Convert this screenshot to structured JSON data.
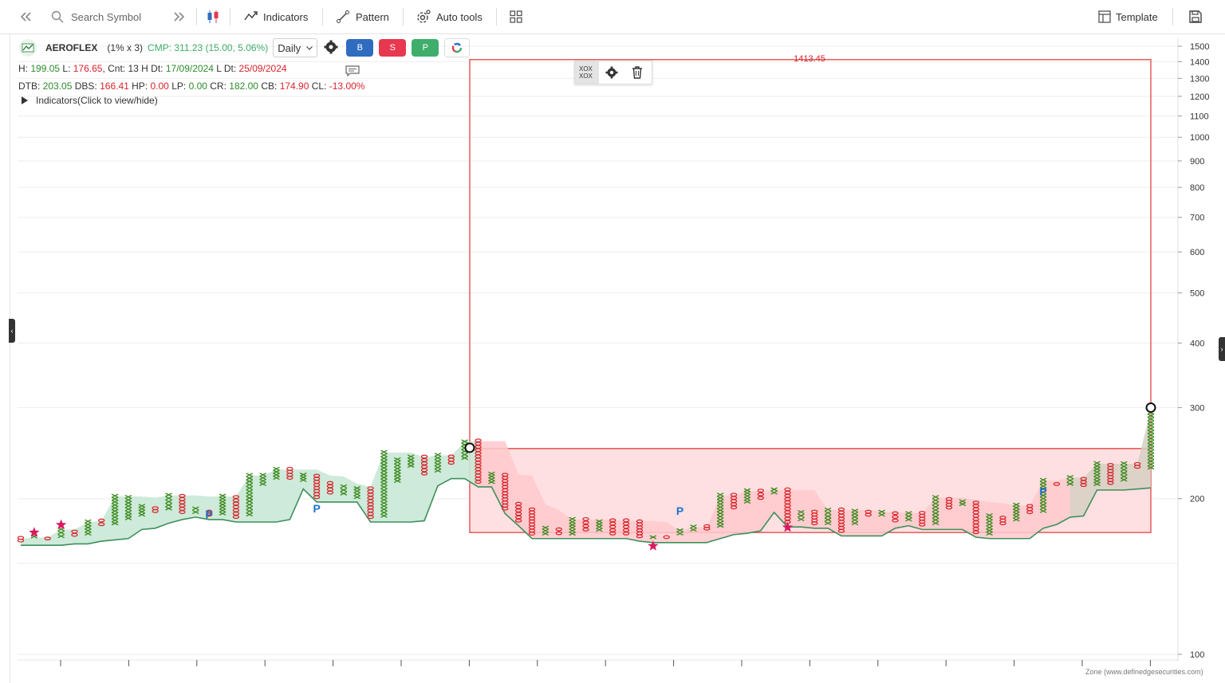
{
  "toolbar": {
    "search_placeholder": "Search Symbol",
    "indicators_label": "Indicators",
    "pattern_label": "Pattern",
    "auto_tools_label": "Auto tools",
    "template_label": "Template"
  },
  "symbol": {
    "name": "AEROFLEX",
    "box_setting": "(1% x 3)",
    "cmp": "CMP: 311.23 (15.00, 5.06%)",
    "timeframe": "Daily",
    "buy_label": "B",
    "sell_label": "S",
    "p_label": "P"
  },
  "stats1": {
    "h_key": "H:",
    "h_val": "199.05",
    "l_key": "L:",
    "l_val": "176.65",
    "cnt": "Cnt: 13",
    "h_dt_key": "H Dt:",
    "h_dt_val": "17/09/2024",
    "l_dt_key": "L Dt:",
    "l_dt_val": "25/09/2024"
  },
  "stats2": {
    "dtb_key": "DTB:",
    "dtb_val": "203.05",
    "dbs_key": "DBS:",
    "dbs_val": "166.41",
    "hp_key": "HP:",
    "hp_val": "0.00",
    "lp_key": "LP:",
    "lp_val": "0.00",
    "cr_key": "CR:",
    "cr_val": "182.00",
    "cb_key": "CB:",
    "cb_val": "174.90",
    "cl_key": "CL:",
    "cl_val": "-13.00%"
  },
  "indicators_toggle": "Indicators(Click to view/hide)",
  "zone_label": "Zone (www.definedgesecurities.com)",
  "colors": {
    "x_col": "#3d8a1f",
    "o_col": "#d8232a",
    "cloud_green": "#c9e8d6",
    "cloud_red": "#ffc9cc",
    "line": "#3f8f5b",
    "rect_stroke": "#e85c5c",
    "rect_fill": "#ffe0e2",
    "star": "#d81b60",
    "p_label": "#1e73c8",
    "buy": "#2f6cc0",
    "sell": "#e8384f",
    "p_btn": "#3fae6a"
  },
  "chart_data": {
    "type": "point-and-figure",
    "scale": "log",
    "y_ticks": [
      1500,
      1400,
      1300,
      1200,
      1100,
      1000,
      900,
      800,
      700,
      600,
      500,
      400,
      300,
      200,
      100
    ],
    "ylim": [
      100,
      1500
    ],
    "rectangle_label": "1413.45",
    "rectangle": {
      "upper": 1413.45,
      "lower": 250,
      "floor": 172
    },
    "columns": [
      {
        "type": "O",
        "high": 169,
        "low": 165
      },
      {
        "type": "X",
        "high": 170,
        "low": 168
      },
      {
        "type": "O",
        "high": 169,
        "low": 166
      },
      {
        "type": "X",
        "high": 176,
        "low": 168
      },
      {
        "type": "O",
        "high": 174,
        "low": 169
      },
      {
        "type": "X",
        "high": 182,
        "low": 170
      },
      {
        "type": "O",
        "high": 183,
        "low": 177
      },
      {
        "type": "X",
        "high": 204,
        "low": 178
      },
      {
        "type": "X",
        "high": 203,
        "low": 182
      },
      {
        "type": "X",
        "high": 195,
        "low": 185
      },
      {
        "type": "O",
        "high": 193,
        "low": 188
      },
      {
        "type": "X",
        "high": 205,
        "low": 190
      },
      {
        "type": "O",
        "high": 204,
        "low": 187
      },
      {
        "type": "X",
        "high": 193,
        "low": 187
      },
      {
        "type": "O",
        "high": 190,
        "low": 185
      },
      {
        "type": "X",
        "high": 204,
        "low": 186
      },
      {
        "type": "O",
        "high": 203,
        "low": 183
      },
      {
        "type": "X",
        "high": 224,
        "low": 185
      },
      {
        "type": "X",
        "high": 224,
        "low": 212
      },
      {
        "type": "X",
        "high": 230,
        "low": 218
      },
      {
        "type": "O",
        "high": 230,
        "low": 218
      },
      {
        "type": "X",
        "high": 224,
        "low": 216
      },
      {
        "type": "O",
        "high": 223,
        "low": 200
      },
      {
        "type": "O",
        "high": 216,
        "low": 204
      },
      {
        "type": "X",
        "high": 213,
        "low": 203
      },
      {
        "type": "X",
        "high": 211,
        "low": 200
      },
      {
        "type": "O",
        "high": 211,
        "low": 183
      },
      {
        "type": "X",
        "high": 248,
        "low": 184
      },
      {
        "type": "X",
        "high": 240,
        "low": 215
      },
      {
        "type": "X",
        "high": 243,
        "low": 230
      },
      {
        "type": "O",
        "high": 243,
        "low": 222
      },
      {
        "type": "X",
        "high": 245,
        "low": 225
      },
      {
        "type": "O",
        "high": 243,
        "low": 233
      },
      {
        "type": "X",
        "high": 260,
        "low": 238
      },
      {
        "type": "O",
        "high": 261,
        "low": 214
      },
      {
        "type": "X",
        "high": 225,
        "low": 214
      },
      {
        "type": "O",
        "high": 224,
        "low": 190
      },
      {
        "type": "O",
        "high": 197,
        "low": 180
      },
      {
        "type": "O",
        "high": 192,
        "low": 170
      },
      {
        "type": "X",
        "high": 177,
        "low": 170
      },
      {
        "type": "O",
        "high": 176,
        "low": 170
      },
      {
        "type": "X",
        "high": 184,
        "low": 170
      },
      {
        "type": "O",
        "high": 184,
        "low": 173
      },
      {
        "type": "X",
        "high": 182,
        "low": 173
      },
      {
        "type": "O",
        "high": 183,
        "low": 170
      },
      {
        "type": "O",
        "high": 183,
        "low": 170
      },
      {
        "type": "O",
        "high": 182,
        "low": 168
      },
      {
        "type": "X",
        "high": 170,
        "low": 167
      },
      {
        "type": "O",
        "high": 170,
        "low": 167
      },
      {
        "type": "X",
        "high": 175,
        "low": 170
      },
      {
        "type": "X",
        "high": 178,
        "low": 173
      },
      {
        "type": "O",
        "high": 178,
        "low": 174
      },
      {
        "type": "X",
        "high": 205,
        "low": 176
      },
      {
        "type": "O",
        "high": 205,
        "low": 191
      },
      {
        "type": "X",
        "high": 209,
        "low": 196
      },
      {
        "type": "O",
        "high": 209,
        "low": 199
      },
      {
        "type": "X",
        "high": 210,
        "low": 204
      },
      {
        "type": "O",
        "high": 210,
        "low": 179
      },
      {
        "type": "X",
        "high": 190,
        "low": 181
      },
      {
        "type": "O",
        "high": 190,
        "low": 178
      },
      {
        "type": "X",
        "high": 192,
        "low": 178
      },
      {
        "type": "O",
        "high": 192,
        "low": 172
      },
      {
        "type": "X",
        "high": 191,
        "low": 178
      },
      {
        "type": "O",
        "high": 190,
        "low": 185
      },
      {
        "type": "X",
        "high": 190,
        "low": 185
      },
      {
        "type": "O",
        "high": 189,
        "low": 180
      },
      {
        "type": "X",
        "high": 189,
        "low": 181
      },
      {
        "type": "O",
        "high": 189,
        "low": 177
      },
      {
        "type": "X",
        "high": 203,
        "low": 178
      },
      {
        "type": "O",
        "high": 201,
        "low": 191
      },
      {
        "type": "X",
        "high": 199,
        "low": 194
      },
      {
        "type": "O",
        "high": 198,
        "low": 171
      },
      {
        "type": "X",
        "high": 187,
        "low": 170
      },
      {
        "type": "O",
        "high": 185,
        "low": 178
      },
      {
        "type": "X",
        "high": 196,
        "low": 181
      },
      {
        "type": "O",
        "high": 195,
        "low": 187
      },
      {
        "type": "X",
        "high": 219,
        "low": 188
      },
      {
        "type": "O",
        "high": 215,
        "low": 212
      },
      {
        "type": "X",
        "high": 222,
        "low": 212
      },
      {
        "type": "O",
        "high": 220,
        "low": 211
      },
      {
        "type": "X",
        "high": 236,
        "low": 212
      },
      {
        "type": "O",
        "high": 234,
        "low": 213
      },
      {
        "type": "X",
        "high": 236,
        "low": 216
      },
      {
        "type": "O",
        "high": 235,
        "low": 229
      },
      {
        "type": "X",
        "high": 300,
        "low": 228
      }
    ],
    "stars": [
      172,
      178,
      162,
      176
    ],
    "p_markers": 4
  }
}
